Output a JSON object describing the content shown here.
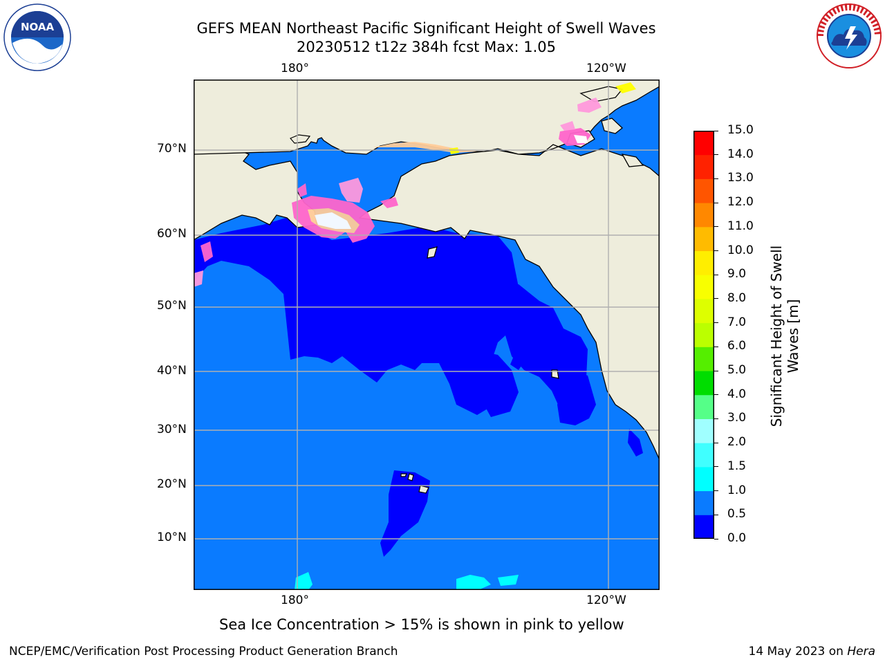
{
  "title": {
    "line1": "GEFS MEAN Northeast Pacific Significant Height of Swell Waves",
    "line2": "20230512 t12z 384h fcst   Max: 1.05"
  },
  "logos": {
    "left": {
      "text": "NOAA",
      "ring_text": "NATIONAL OCEANIC AND ATMOSPHERIC ADMINISTRATION · U.S. DEPARTMENT OF COMMERCE"
    },
    "right": {
      "ring_text": "NATIONAL WEATHER SERVICE"
    }
  },
  "map": {
    "lon_labels_top": [
      "180°",
      "120°W"
    ],
    "lon_labels_bottom": [
      "180°",
      "120°W"
    ],
    "lat_labels": [
      "70°N",
      "60°N",
      "50°N",
      "40°N",
      "30°N",
      "20°N",
      "10°N"
    ],
    "colors": {
      "ocean_low": "#0000ff",
      "ocean": "#0a7bff",
      "land": "#eeeddc",
      "ice": [
        "#ff66cc",
        "#ff99dd",
        "#ffcc99",
        "#ffffff",
        "#ffff00"
      ],
      "coast": "#000000",
      "grid": "#b0b0b0"
    }
  },
  "colorbar": {
    "label_line1": "Significant Height of Swell",
    "label_line2": "Waves [m]",
    "levels": [
      "0.0",
      "0.5",
      "1.0",
      "1.5",
      "2.0",
      "3.0",
      "4.0",
      "5.0",
      "6.0",
      "7.0",
      "8.0",
      "9.0",
      "10.0",
      "11.0",
      "12.0",
      "13.0",
      "14.0",
      "15.0"
    ],
    "colors": [
      "#0000ff",
      "#0a7bff",
      "#00ffff",
      "#40ffff",
      "#a0ffff",
      "#55ff88",
      "#00dd00",
      "#55ee00",
      "#bbff00",
      "#ddff00",
      "#f8ff00",
      "#ffee00",
      "#ffbb00",
      "#ff8800",
      "#ff5500",
      "#ff2200",
      "#ff0000"
    ]
  },
  "caption": "Sea Ice Concentration > 15% is shown in pink to yellow",
  "footer": {
    "left": "NCEP/EMC/Verification Post Processing Product Generation Branch",
    "right_prefix": "14 May 2023 on ",
    "right_host": "Hera"
  }
}
